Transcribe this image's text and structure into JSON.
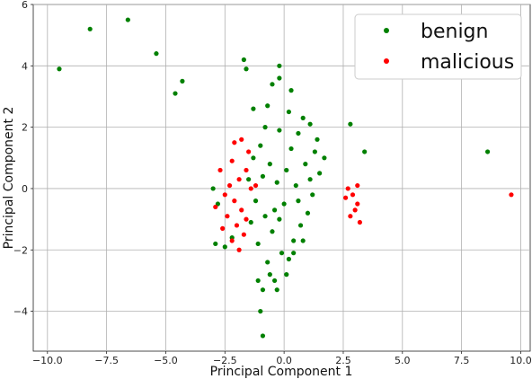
{
  "chart_data": {
    "type": "scatter",
    "xlabel": "Principal Component 1",
    "ylabel": "Principal Component 2",
    "xlim": [
      -10.6,
      10.4
    ],
    "ylim": [
      -5.3,
      6.0
    ],
    "xticks": [
      -10.0,
      -7.5,
      -5.0,
      -2.5,
      0.0,
      2.5,
      5.0,
      7.5,
      10.0
    ],
    "xtick_labels": [
      "−10.0",
      "−7.5",
      "−5.0",
      "−2.5",
      "0.0",
      "2.5",
      "5.0",
      "7.5",
      "10.0"
    ],
    "yticks": [
      -4,
      -2,
      0,
      2,
      4,
      6
    ],
    "ytick_labels": [
      "−4",
      "−2",
      "0",
      "2",
      "4",
      "6"
    ],
    "grid": true,
    "legend_position": "top-right",
    "series": [
      {
        "name": "benign",
        "color": "#008000",
        "points": [
          [
            -9.5,
            3.9
          ],
          [
            -8.2,
            5.2
          ],
          [
            -6.6,
            5.5
          ],
          [
            -5.4,
            4.4
          ],
          [
            -4.6,
            3.1
          ],
          [
            -4.3,
            3.5
          ],
          [
            -1.7,
            4.2
          ],
          [
            -1.6,
            3.9
          ],
          [
            -0.2,
            4.0
          ],
          [
            2.8,
            2.1
          ],
          [
            3.4,
            1.2
          ],
          [
            8.6,
            1.2
          ],
          [
            -3.0,
            0.0
          ],
          [
            -2.8,
            -0.5
          ],
          [
            -2.5,
            -1.9
          ],
          [
            -2.9,
            -1.8
          ],
          [
            -2.2,
            -1.6
          ],
          [
            -1.0,
            -4.0
          ],
          [
            -0.9,
            -4.8
          ],
          [
            -1.1,
            -3.0
          ],
          [
            -0.6,
            -2.8
          ],
          [
            -0.3,
            -3.3
          ],
          [
            -1.3,
            2.6
          ],
          [
            -0.7,
            2.7
          ],
          [
            -0.2,
            3.6
          ],
          [
            0.3,
            3.2
          ],
          [
            -0.5,
            3.4
          ],
          [
            0.6,
            1.8
          ],
          [
            0.8,
            2.3
          ],
          [
            1.1,
            2.1
          ],
          [
            1.4,
            1.6
          ],
          [
            1.7,
            1.0
          ],
          [
            1.5,
            0.5
          ],
          [
            1.2,
            -0.2
          ],
          [
            1.0,
            -0.8
          ],
          [
            0.7,
            -1.2
          ],
          [
            0.4,
            -1.7
          ],
          [
            0.2,
            -2.3
          ],
          [
            -0.1,
            -2.1
          ],
          [
            -0.5,
            -1.4
          ],
          [
            -0.8,
            -0.9
          ],
          [
            -1.2,
            -0.4
          ],
          [
            -1.5,
            0.3
          ],
          [
            -1.3,
            1.0
          ],
          [
            -1.0,
            1.4
          ],
          [
            -0.6,
            0.8
          ],
          [
            -0.3,
            0.2
          ],
          [
            0.1,
            0.6
          ],
          [
            0.5,
            0.1
          ],
          [
            0.0,
            -0.5
          ],
          [
            -0.4,
            -0.7
          ],
          [
            0.9,
            0.8
          ],
          [
            0.3,
            1.3
          ],
          [
            -0.2,
            1.9
          ],
          [
            -0.8,
            2.0
          ],
          [
            0.6,
            -0.4
          ],
          [
            -1.1,
            -1.8
          ],
          [
            -0.7,
            -2.4
          ],
          [
            0.1,
            -2.8
          ],
          [
            -0.4,
            -3.0
          ],
          [
            -0.9,
            -3.3
          ],
          [
            1.3,
            1.2
          ],
          [
            0.2,
            2.5
          ],
          [
            -0.9,
            0.4
          ],
          [
            0.8,
            -1.7
          ],
          [
            -1.4,
            -1.1
          ],
          [
            -0.2,
            -1.0
          ],
          [
            0.4,
            -2.1
          ],
          [
            1.1,
            0.3
          ]
        ]
      },
      {
        "name": "malicious",
        "color": "#ff0000",
        "points": [
          [
            -2.1,
            1.5
          ],
          [
            -1.8,
            1.6
          ],
          [
            -1.5,
            1.2
          ],
          [
            -2.2,
            0.9
          ],
          [
            -1.6,
            0.6
          ],
          [
            -1.9,
            0.3
          ],
          [
            -2.3,
            0.1
          ],
          [
            -2.5,
            -0.2
          ],
          [
            -2.1,
            -0.4
          ],
          [
            -1.8,
            -0.7
          ],
          [
            -2.4,
            -0.9
          ],
          [
            -2.0,
            -1.2
          ],
          [
            -1.7,
            -1.5
          ],
          [
            -2.2,
            -1.7
          ],
          [
            -1.9,
            -2.0
          ],
          [
            -2.6,
            -1.3
          ],
          [
            -2.7,
            0.6
          ],
          [
            -1.4,
            0.0
          ],
          [
            -1.2,
            0.1
          ],
          [
            -2.9,
            -0.6
          ],
          [
            -1.6,
            -1.0
          ],
          [
            2.7,
            0.0
          ],
          [
            2.9,
            -0.2
          ],
          [
            3.1,
            -0.5
          ],
          [
            2.8,
            -0.9
          ],
          [
            3.2,
            -1.1
          ],
          [
            3.0,
            -0.7
          ],
          [
            2.6,
            -0.3
          ],
          [
            3.1,
            0.1
          ],
          [
            9.6,
            -0.2
          ]
        ]
      }
    ]
  }
}
